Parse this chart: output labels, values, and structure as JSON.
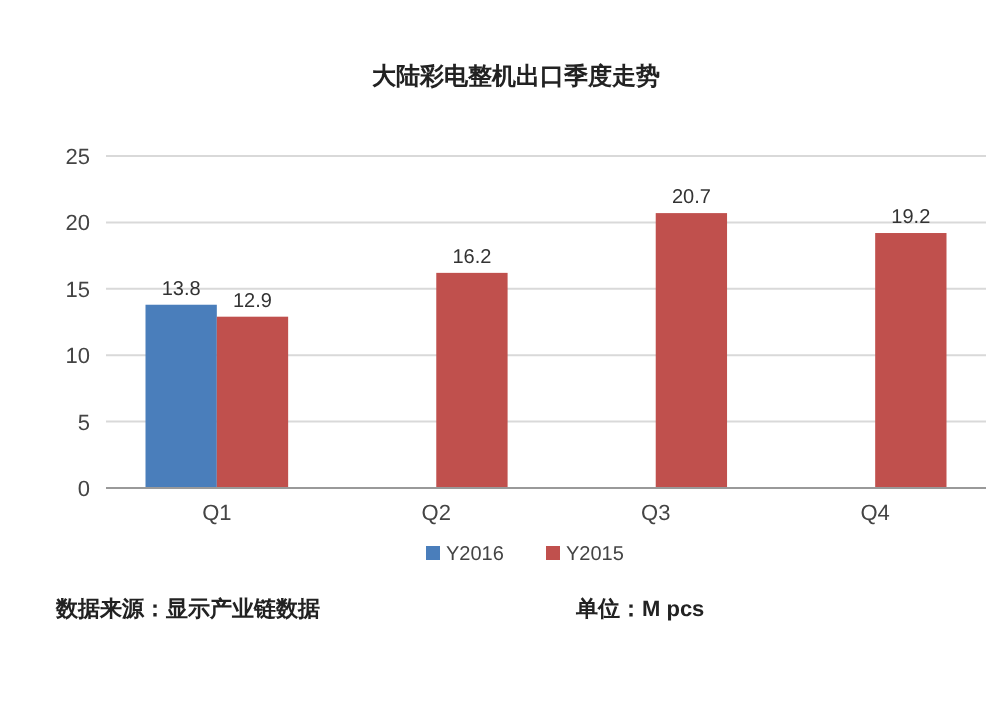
{
  "chart_data": {
    "type": "bar",
    "title": "大陆彩电整机出口季度走势",
    "categories": [
      "Q1",
      "Q2",
      "Q3",
      "Q4"
    ],
    "series": [
      {
        "name": "Y2016",
        "color": "#4a7ebb",
        "values": [
          13.8,
          null,
          null,
          null
        ]
      },
      {
        "name": "Y2015",
        "color": "#c0504d",
        "values": [
          12.9,
          16.2,
          20.7,
          19.2
        ]
      }
    ],
    "ylim": [
      0,
      25
    ],
    "yticks": [
      0,
      5,
      10,
      15,
      20,
      25
    ],
    "grid": "y",
    "legend": "bottom",
    "data_labels": true,
    "annotations": [
      "数据来源：显示产业链数据",
      "单位：M pcs"
    ]
  }
}
